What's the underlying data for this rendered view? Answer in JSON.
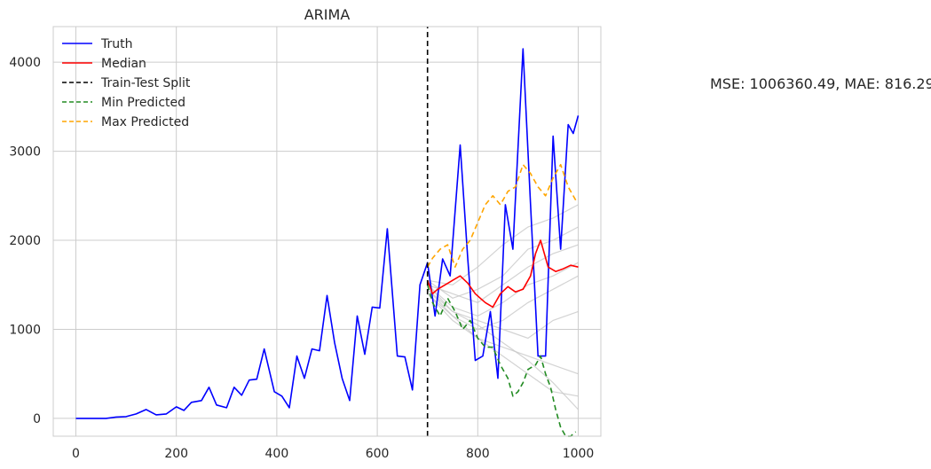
{
  "chart_data": {
    "type": "line",
    "title": "ARIMA",
    "xlabel": "",
    "ylabel": "",
    "xlim": [
      -45,
      1045
    ],
    "ylim": [
      -200,
      4400
    ],
    "xticks": [
      0,
      200,
      400,
      600,
      800,
      1000
    ],
    "yticks": [
      0,
      1000,
      2000,
      3000,
      4000
    ],
    "grid": true,
    "legend_position": "top-left",
    "split_x": 700,
    "colors": {
      "truth": "#0000ff",
      "median": "#ff0000",
      "split": "#000000",
      "min": "#228b22",
      "max": "#ffa500",
      "samples": "#c8c8c8"
    },
    "series": [
      {
        "name": "Truth",
        "x": [
          0,
          60,
          80,
          100,
          120,
          140,
          160,
          180,
          200,
          215,
          230,
          250,
          265,
          280,
          300,
          315,
          330,
          345,
          360,
          375,
          395,
          410,
          425,
          440,
          455,
          470,
          485,
          500,
          515,
          530,
          545,
          560,
          575,
          590,
          605,
          620,
          640,
          655,
          670,
          685,
          700,
          715,
          730,
          745,
          765,
          780,
          795,
          810,
          825,
          840,
          855,
          870,
          890,
          905,
          920,
          935,
          950,
          965,
          980,
          990,
          1000
        ],
        "y": [
          0,
          0,
          15,
          20,
          50,
          100,
          40,
          50,
          130,
          90,
          180,
          200,
          350,
          150,
          120,
          350,
          260,
          430,
          440,
          780,
          300,
          250,
          120,
          700,
          450,
          780,
          760,
          1380,
          850,
          450,
          200,
          1150,
          720,
          1250,
          1240,
          2130,
          700,
          690,
          320,
          1500,
          1750,
          1150,
          1790,
          1600,
          3070,
          1800,
          650,
          700,
          1200,
          450,
          2400,
          1900,
          4150,
          2400,
          700,
          700,
          3170,
          1900,
          3300,
          3200,
          3400
        ]
      },
      {
        "name": "Median",
        "x": [
          700,
          710,
          720,
          735,
          750,
          765,
          780,
          795,
          805,
          815,
          830,
          845,
          860,
          875,
          890,
          905,
          915,
          925,
          940,
          955,
          970,
          985,
          1000
        ],
        "y": [
          1550,
          1400,
          1450,
          1500,
          1550,
          1600,
          1520,
          1400,
          1350,
          1300,
          1250,
          1400,
          1480,
          1420,
          1450,
          1600,
          1850,
          2000,
          1700,
          1650,
          1680,
          1720,
          1700
        ]
      },
      {
        "name": "Train-Test Split",
        "x": [
          700,
          700
        ],
        "y": [
          -200,
          4400
        ]
      },
      {
        "name": "Min Predicted",
        "x": [
          700,
          710,
          725,
          740,
          755,
          770,
          785,
          800,
          815,
          830,
          845,
          860,
          870,
          880,
          890,
          900,
          915,
          925,
          935,
          945,
          955,
          965,
          975,
          985,
          995
        ],
        "y": [
          1500,
          1300,
          1150,
          1350,
          1200,
          1000,
          1100,
          900,
          800,
          800,
          600,
          450,
          250,
          300,
          400,
          550,
          600,
          700,
          500,
          350,
          100,
          -100,
          -200,
          -200,
          -150
        ]
      },
      {
        "name": "Max Predicted",
        "x": [
          700,
          710,
          725,
          740,
          755,
          770,
          785,
          800,
          815,
          830,
          845,
          860,
          875,
          890,
          905,
          920,
          935,
          950,
          965,
          980,
          995
        ],
        "y": [
          1700,
          1800,
          1900,
          1950,
          1700,
          1900,
          2000,
          2200,
          2400,
          2500,
          2400,
          2550,
          2600,
          2850,
          2750,
          2600,
          2500,
          2700,
          2850,
          2600,
          2450
        ]
      }
    ],
    "samples": [
      {
        "x": [
          700,
          750,
          800,
          850,
          900,
          950,
          1000
        ],
        "y": [
          1550,
          1500,
          1700,
          1950,
          2150,
          2250,
          2400
        ]
      },
      {
        "x": [
          700,
          750,
          800,
          850,
          900,
          950,
          1000
        ],
        "y": [
          1550,
          1350,
          1450,
          1600,
          1900,
          2000,
          2150
        ]
      },
      {
        "x": [
          700,
          750,
          800,
          850,
          900,
          950,
          1000
        ],
        "y": [
          1500,
          1400,
          1300,
          1500,
          1700,
          1850,
          1950
        ]
      },
      {
        "x": [
          700,
          750,
          800,
          850,
          900,
          950,
          1000
        ],
        "y": [
          1500,
          1250,
          1150,
          1300,
          1500,
          1600,
          1750
        ]
      },
      {
        "x": [
          700,
          750,
          800,
          850,
          900,
          950,
          1000
        ],
        "y": [
          1450,
          1150,
          1000,
          1100,
          1300,
          1450,
          1600
        ]
      },
      {
        "x": [
          700,
          750,
          800,
          850,
          900,
          950,
          1000
        ],
        "y": [
          1450,
          1200,
          1100,
          1000,
          900,
          1100,
          1200
        ]
      },
      {
        "x": [
          700,
          750,
          800,
          850,
          900,
          950,
          1000
        ],
        "y": [
          1400,
          1100,
          900,
          800,
          700,
          600,
          500
        ]
      },
      {
        "x": [
          700,
          750,
          800,
          850,
          900,
          950,
          1000
        ],
        "y": [
          1400,
          1150,
          900,
          700,
          500,
          300,
          250
        ]
      },
      {
        "x": [
          700,
          750,
          800,
          850,
          900,
          950,
          1000
        ],
        "y": [
          1500,
          1200,
          1050,
          850,
          650,
          400,
          100
        ]
      }
    ]
  },
  "metrics_text": "MSE: 1006360.49, MAE: 816.29"
}
